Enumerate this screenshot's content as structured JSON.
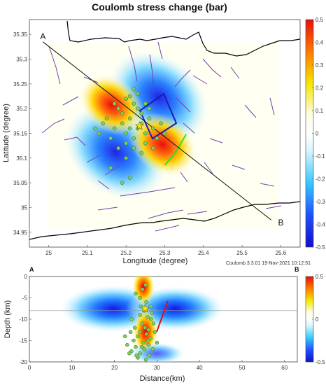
{
  "chart_data": [
    {
      "type": "heatmap",
      "title": "Coulomb stress change (bar)",
      "xlabel": "Longitude (degree)",
      "ylabel": "Latitude (degree)",
      "xlim": [
        24.95,
        25.65
      ],
      "ylim": [
        34.92,
        35.38
      ],
      "xticks": [
        "25",
        "25.1",
        "25.2",
        "25.3",
        "25.4",
        "25.5",
        "25.6"
      ],
      "yticks": [
        "34.95",
        "35",
        "35.05",
        "35.1",
        "35.15",
        "35.2",
        "35.25",
        "35.3",
        "35.35"
      ],
      "colorbar": {
        "min": -0.5,
        "max": 0.5,
        "ticks": [
          "0.5",
          "0.4",
          "0.3",
          "0.2",
          "0.1",
          "0",
          "-0.1",
          "-0.2",
          "-0.3",
          "-0.4",
          "-0.5"
        ]
      },
      "profile_labels": {
        "start": "A",
        "end": "B"
      },
      "profile_line": [
        [
          24.985,
          35.335
        ],
        [
          25.575,
          34.975
        ]
      ],
      "epicenter": [
        25.235,
        35.165
      ],
      "footer": "Coulomb 3.3.01 19-Nov-2021 10:12:51",
      "events": [
        [
          25.18,
          35.2
        ],
        [
          25.2,
          35.22
        ],
        [
          25.22,
          35.21
        ],
        [
          25.24,
          35.19
        ],
        [
          25.21,
          35.18
        ],
        [
          25.19,
          35.17
        ],
        [
          25.23,
          35.16
        ],
        [
          25.25,
          35.15
        ],
        [
          25.22,
          35.14
        ],
        [
          25.2,
          35.15
        ],
        [
          25.17,
          35.16
        ],
        [
          25.26,
          35.18
        ],
        [
          25.24,
          35.17
        ],
        [
          25.21,
          35.16
        ],
        [
          25.19,
          35.19
        ],
        [
          25.23,
          35.2
        ],
        [
          25.27,
          35.16
        ],
        [
          25.28,
          35.14
        ],
        [
          25.25,
          35.13
        ],
        [
          25.22,
          35.12
        ],
        [
          25.2,
          35.13
        ],
        [
          25.16,
          35.14
        ],
        [
          25.15,
          35.18
        ],
        [
          25.14,
          35.17
        ],
        [
          25.18,
          35.12
        ],
        [
          25.23,
          35.23
        ],
        [
          25.25,
          35.21
        ],
        [
          25.21,
          35.225
        ],
        [
          25.17,
          35.21
        ],
        [
          25.13,
          35.15
        ],
        [
          25.29,
          35.17
        ],
        [
          25.26,
          35.2
        ],
        [
          25.2,
          35.1
        ],
        [
          25.24,
          35.11
        ],
        [
          25.19,
          35.05
        ],
        [
          25.21,
          35.06
        ],
        [
          25.16,
          35.08
        ],
        [
          25.27,
          35.12
        ],
        [
          25.3,
          35.15
        ],
        [
          25.12,
          35.16
        ],
        [
          25.22,
          35.24
        ]
      ]
    },
    {
      "type": "heatmap",
      "xlabel": "Distance(km)",
      "ylabel": "Depth (km)",
      "xlim": [
        0,
        63
      ],
      "ylim": [
        -20,
        0
      ],
      "xticks": [
        "0",
        "10",
        "20",
        "30",
        "40",
        "50",
        "60"
      ],
      "yticks": [
        "0",
        "-5",
        "-10",
        "-15",
        "-20"
      ],
      "colorbar": {
        "min": -0.5,
        "max": 0.5,
        "ticks": [
          "0.5",
          "0",
          "-0.5"
        ]
      },
      "profile_labels": {
        "start": "A",
        "end": "B"
      },
      "reference_depth": -8,
      "hypocenter": [
        27.2,
        -7.5
      ],
      "events": [
        [
          25,
          -4
        ],
        [
          26,
          -5
        ],
        [
          27.5,
          -6
        ],
        [
          28.5,
          -7
        ],
        [
          27,
          -8
        ],
        [
          26,
          -9
        ],
        [
          27.8,
          -9.5
        ],
        [
          28.6,
          -10
        ],
        [
          26.5,
          -11
        ],
        [
          27.2,
          -12
        ],
        [
          28,
          -12.5
        ],
        [
          26,
          -13
        ],
        [
          27.5,
          -13.5
        ],
        [
          25.5,
          -14
        ],
        [
          28.5,
          -14.5
        ],
        [
          24.5,
          -15
        ],
        [
          26.8,
          -15.5
        ],
        [
          28,
          -16
        ],
        [
          25,
          -16.5
        ],
        [
          27,
          -17
        ],
        [
          24,
          -17.5
        ],
        [
          26,
          -18
        ],
        [
          28.2,
          -18.5
        ],
        [
          23.5,
          -18
        ],
        [
          25.5,
          -19
        ],
        [
          27.4,
          -19.5
        ],
        [
          29,
          -17
        ],
        [
          23,
          -16
        ],
        [
          24.8,
          -12
        ],
        [
          29.5,
          -13
        ],
        [
          22.5,
          -14
        ],
        [
          30,
          -15.5
        ],
        [
          26.2,
          -7
        ],
        [
          28.8,
          -8.5
        ],
        [
          24,
          -10
        ],
        [
          27.3,
          -2
        ],
        [
          26.6,
          -3
        ],
        [
          29.2,
          -11
        ],
        [
          23.8,
          -13
        ],
        [
          27.9,
          -15
        ],
        [
          26.4,
          -16.5
        ],
        [
          25.2,
          -18.5
        ]
      ]
    }
  ]
}
